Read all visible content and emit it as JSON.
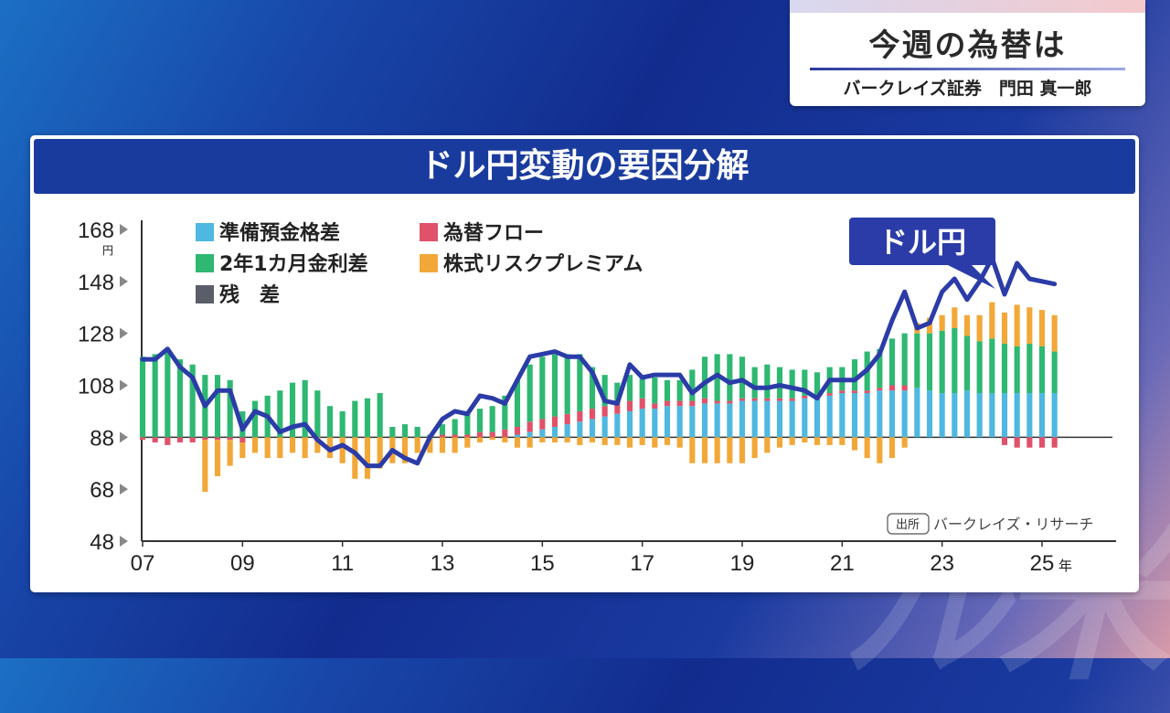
{
  "show": {
    "title": "今週の為替は",
    "subtitle": "バークレイズ証券　門田 真一郎"
  },
  "chart_title": "ドル円変動の要因分解",
  "colors": {
    "reserve": "#4fb8e0",
    "flow": "#e0526a",
    "rate": "#2eb872",
    "equity": "#f2a838",
    "residual": "#5a5e68",
    "line": "#2b3ca8"
  },
  "chart_data": {
    "type": "bar",
    "title": "ドル円変動の要因分解",
    "ylim": [
      48,
      168
    ],
    "baseline": 88,
    "yticks": [
      "168",
      "148",
      "128",
      "108",
      "88",
      "68",
      "48"
    ],
    "yticks_values": [
      168,
      148,
      128,
      108,
      88,
      68,
      48
    ],
    "y_unit": "円",
    "xticks": [
      "07",
      "09",
      "11",
      "13",
      "15",
      "17",
      "19",
      "21",
      "23",
      "25"
    ],
    "xticks_years": [
      2007,
      2009,
      2011,
      2013,
      2015,
      2017,
      2019,
      2021,
      2023,
      2025
    ],
    "x_unit": "年",
    "x_start": 2007.0,
    "x_step": 0.25,
    "legend": [
      {
        "key": "reserve",
        "label": "準備預金格差"
      },
      {
        "key": "flow",
        "label": "為替フロー"
      },
      {
        "key": "rate",
        "label": "2年1カ月金利差"
      },
      {
        "key": "equity",
        "label": "株式リスクプレミアム"
      },
      {
        "key": "residual",
        "label": "残　差"
      }
    ],
    "line_label": "ドル円",
    "source_badge": "出所",
    "source": "バークレイズ・リサーチ",
    "usdjpy": [
      118,
      118,
      122,
      115,
      111,
      100,
      106,
      106,
      91,
      98,
      96,
      90,
      92,
      93,
      87,
      83,
      85,
      82,
      77,
      77,
      83,
      80,
      78,
      88,
      95,
      98,
      97,
      104,
      103,
      101,
      110,
      119,
      120,
      121,
      119,
      119,
      113,
      102,
      101,
      116,
      111,
      112,
      112,
      112,
      105,
      109,
      112,
      109,
      110,
      107,
      107,
      108,
      107,
      106,
      103,
      110,
      110,
      110,
      114,
      120,
      133,
      144,
      130,
      132,
      144,
      149,
      141,
      148,
      157,
      143,
      155,
      149,
      148,
      147
    ],
    "series": [
      {
        "name": "準備預金格差",
        "values": [
          0,
          0,
          0,
          0,
          0,
          0,
          0,
          0,
          0,
          0,
          0,
          0,
          0,
          0,
          0,
          0,
          0,
          0,
          0,
          0,
          0,
          0,
          0,
          0,
          0,
          0,
          0,
          0,
          0,
          0,
          1,
          2,
          3,
          4,
          5,
          6,
          7,
          8,
          9,
          10,
          11,
          11,
          12,
          12,
          12,
          13,
          13,
          13,
          14,
          14,
          14,
          14,
          14,
          15,
          15,
          16,
          17,
          17,
          17,
          18,
          18,
          18,
          19,
          18,
          17,
          17,
          18,
          17,
          17,
          17,
          17,
          17,
          17,
          17
        ]
      },
      {
        "name": "為替フロー",
        "values": [
          -1,
          -2,
          -3,
          -2,
          -2,
          -1,
          -1,
          -1,
          -2,
          0,
          0,
          0,
          0,
          0,
          0,
          0,
          0,
          0,
          0,
          0,
          0,
          0,
          0,
          0,
          1,
          1,
          1,
          2,
          2,
          3,
          3,
          4,
          4,
          4,
          4,
          4,
          4,
          4,
          4,
          4,
          4,
          2,
          2,
          2,
          2,
          2,
          1,
          1,
          1,
          1,
          1,
          1,
          1,
          1,
          1,
          1,
          1,
          1,
          1,
          1,
          2,
          2,
          0,
          0,
          0,
          0,
          0,
          0,
          0,
          -3,
          -4,
          -4,
          -4,
          -4
        ]
      },
      {
        "name": "2年1カ月金利差",
        "values": [
          31,
          32,
          34,
          30,
          28,
          24,
          24,
          22,
          10,
          14,
          16,
          18,
          21,
          22,
          18,
          12,
          10,
          14,
          15,
          17,
          4,
          5,
          4,
          1,
          4,
          6,
          8,
          9,
          10,
          13,
          18,
          22,
          24,
          24,
          23,
          22,
          16,
          12,
          8,
          10,
          8,
          10,
          8,
          8,
          12,
          16,
          18,
          18,
          16,
          12,
          13,
          12,
          11,
          10,
          9,
          10,
          9,
          12,
          15,
          15,
          18,
          20,
          21,
          22,
          24,
          25,
          21,
          20,
          21,
          19,
          18,
          19,
          18,
          16
        ]
      },
      {
        "name": "株式リスクプレミアム",
        "values": [
          0,
          0,
          0,
          0,
          0,
          -20,
          -14,
          -10,
          -6,
          -6,
          -8,
          -8,
          -6,
          -8,
          -6,
          -8,
          -10,
          -16,
          -16,
          -12,
          -10,
          -10,
          -6,
          -6,
          -6,
          -6,
          -4,
          -2,
          -1,
          -2,
          -4,
          -4,
          -2,
          -2,
          -2,
          -3,
          -2,
          -3,
          -3,
          -4,
          -3,
          -4,
          -3,
          -4,
          -10,
          -10,
          -10,
          -10,
          -10,
          -8,
          -6,
          -4,
          -3,
          -2,
          -3,
          -3,
          -3,
          -5,
          -8,
          -10,
          -8,
          -4,
          4,
          6,
          6,
          8,
          8,
          10,
          14,
          12,
          16,
          14,
          14,
          14
        ]
      },
      {
        "name": "残差",
        "values": [
          0,
          0,
          0,
          0,
          0,
          0,
          0,
          0,
          0,
          0,
          0,
          0,
          0,
          0,
          0,
          0,
          0,
          0,
          0,
          0,
          0,
          0,
          0,
          0,
          0,
          0,
          0,
          0,
          0,
          0,
          0,
          0,
          0,
          0,
          0,
          0,
          0,
          0,
          0,
          0,
          0,
          0,
          0,
          0,
          0,
          0,
          0,
          0,
          0,
          0,
          0,
          0,
          0,
          0,
          0,
          0,
          0,
          0,
          0,
          0,
          0,
          0,
          0,
          0,
          0,
          0,
          0,
          0,
          0,
          0,
          0,
          0,
          0,
          0
        ]
      }
    ]
  }
}
